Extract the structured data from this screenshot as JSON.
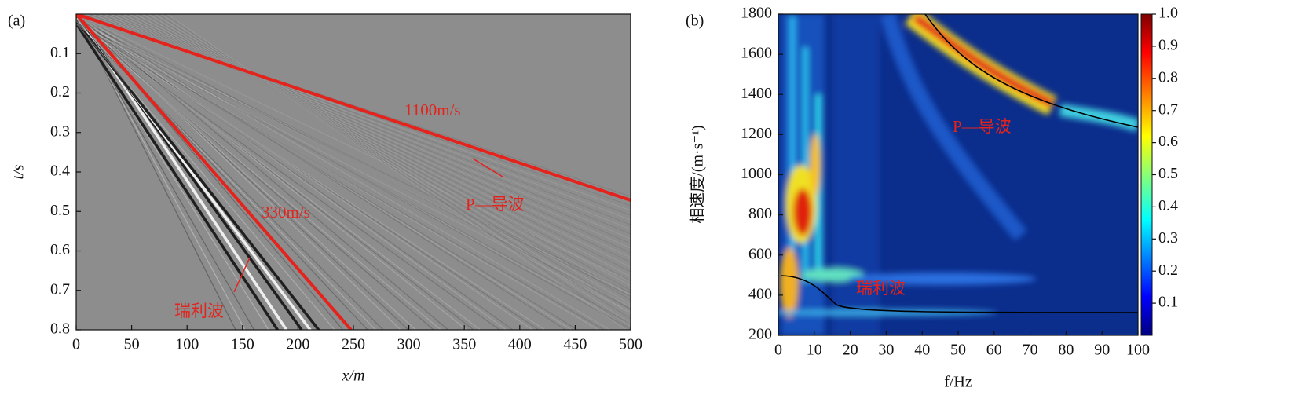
{
  "chart_data": [
    {
      "type": "image",
      "panel_label": "(a)",
      "xlabel": "x/m",
      "ylabel": "t/s",
      "xlim": [
        0,
        500
      ],
      "ylim": [
        0,
        0.8
      ],
      "y_inverted": true,
      "xticks": [
        0,
        50,
        100,
        150,
        200,
        250,
        300,
        350,
        400,
        450,
        500
      ],
      "yticks": [
        0.1,
        0.2,
        0.3,
        0.4,
        0.5,
        0.6,
        0.7,
        0.8
      ],
      "annotations": [
        "1100m/s",
        "330m/s",
        "P—导波",
        "瑞利波"
      ]
    },
    {
      "type": "heatmap",
      "panel_label": "(b)",
      "xlabel": "f/Hz",
      "ylabel": "相速度/(m·s⁻¹)",
      "xlim": [
        0,
        100
      ],
      "ylim": [
        200,
        1800
      ],
      "xticks": [
        0,
        10,
        20,
        30,
        40,
        50,
        60,
        70,
        80,
        90,
        100
      ],
      "yticks": [
        200,
        400,
        600,
        800,
        1000,
        1200,
        1400,
        1600,
        1800
      ],
      "colorbar": {
        "lim": [
          0,
          1
        ],
        "colormap": "jet",
        "ticks": [
          0.1,
          0.2,
          0.3,
          0.4,
          0.5,
          0.6,
          0.7,
          0.8,
          0.9,
          {
            "value": 1,
            "label": "1.0"
          }
        ]
      },
      "annotations": [
        "P—导波",
        "瑞利波"
      ]
    }
  ]
}
